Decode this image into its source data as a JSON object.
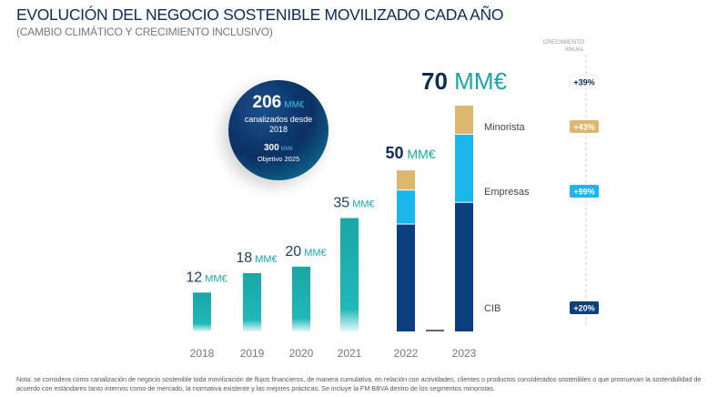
{
  "title": "EVOLUCIÓN DEL NEGOCIO SOSTENIBLE MOVILIZADO CADA AÑO",
  "subtitle": "(CAMBIO CLIMÁTICO Y CRECIMIENTO INCLUSIVO)",
  "growth_header_line1": "CRECIMIENTO",
  "growth_header_line2": "ANUAL",
  "circle": {
    "value": "206",
    "unit": "MM€",
    "text1": "canalizados desde",
    "text2": "2018",
    "target_value": "300",
    "target_unit": "MM€",
    "target_text": "Objetivo 2025"
  },
  "footnote": "Nota: se considera como canalización de negocio sostenible toda movilización de flujos financieros, de manera cumulativa, en relación con actividades, clientes o productos considerados sostenibles o que promuevan la sostenibilidad de acuerdo con estándares tanto internos como de mercado, la normativa existente y las mejores prácticas. Se incluye la FM BBVA dentro de los segmentos minoristas.",
  "colors": {
    "teal": "#1aa6a6",
    "navy": "#0b3f7f",
    "cyan": "#1ab8ea",
    "tan": "#dbb86e",
    "dark": "#0b2a5a"
  },
  "chart_data": {
    "type": "bar",
    "unit": "MM€",
    "categories": [
      "2018",
      "2019",
      "2020",
      "2021",
      "2022",
      "2023"
    ],
    "totals": [
      12,
      18,
      20,
      35,
      50,
      70
    ],
    "total_labels": [
      {
        "value": "12",
        "unit": "MM€"
      },
      {
        "value": "18",
        "unit": "MM€"
      },
      {
        "value": "20",
        "unit": "MM€"
      },
      {
        "value": "35",
        "unit": "MM€"
      },
      {
        "value": "50",
        "unit": "MM€"
      },
      {
        "value": "70",
        "unit": "MM€"
      }
    ],
    "stacked_series": [
      {
        "name": "CIB",
        "values": [
          null,
          null,
          null,
          null,
          33.3,
          40.0
        ],
        "color": "#0b3f7f",
        "growth": "+20%"
      },
      {
        "name": "Empresas",
        "values": [
          null,
          null,
          null,
          null,
          10.5,
          21.0
        ],
        "color": "#1ab8ea",
        "growth": "+99%"
      },
      {
        "name": "Minorista",
        "values": [
          null,
          null,
          null,
          null,
          6.2,
          9.0
        ],
        "color": "#dbb86e",
        "growth": "+43%"
      }
    ],
    "total_growth": "+39%",
    "ylim": [
      0,
      70
    ]
  }
}
